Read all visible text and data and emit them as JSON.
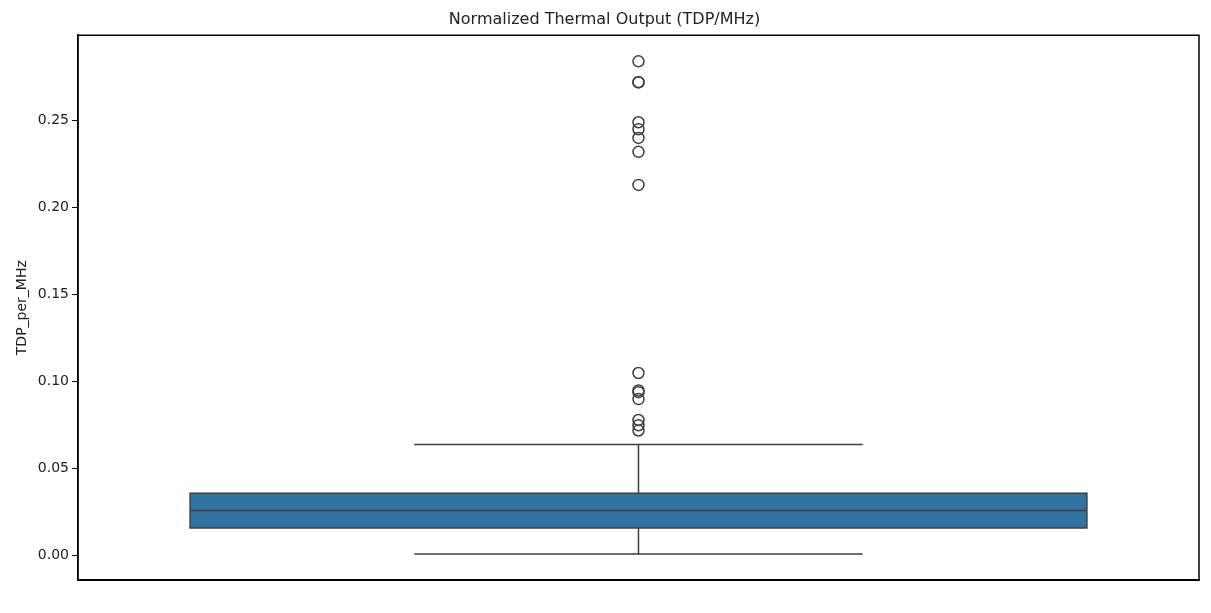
{
  "chart_data": {
    "type": "box",
    "title": "Normalized Thermal Output (TDP/MHz)",
    "ylabel": "TDP_per_MHz",
    "categories": [
      null
    ],
    "color": "#3274a1",
    "boxes": [
      {
        "low": 0.001,
        "q1": 0.016,
        "median": 0.026,
        "q3": 0.036,
        "high": 0.064,
        "outliers": [
          0.284,
          0.272,
          0.272,
          0.249,
          0.245,
          0.24,
          0.232,
          0.213,
          0.105,
          0.095,
          0.094,
          0.09,
          0.078,
          0.075,
          0.072
        ]
      }
    ],
    "ylim": [
      -0.014,
      0.299
    ],
    "yticks": [
      {
        "value": 0,
        "label": "0.00"
      },
      {
        "value": 0.05,
        "label": "0.05"
      },
      {
        "value": 0.1,
        "label": "0.10"
      },
      {
        "value": 0.15,
        "label": "0.15"
      },
      {
        "value": 0.2,
        "label": "0.20"
      },
      {
        "value": 0.25,
        "label": "0.25"
      }
    ],
    "grid": false,
    "tick_labels": "y"
  }
}
